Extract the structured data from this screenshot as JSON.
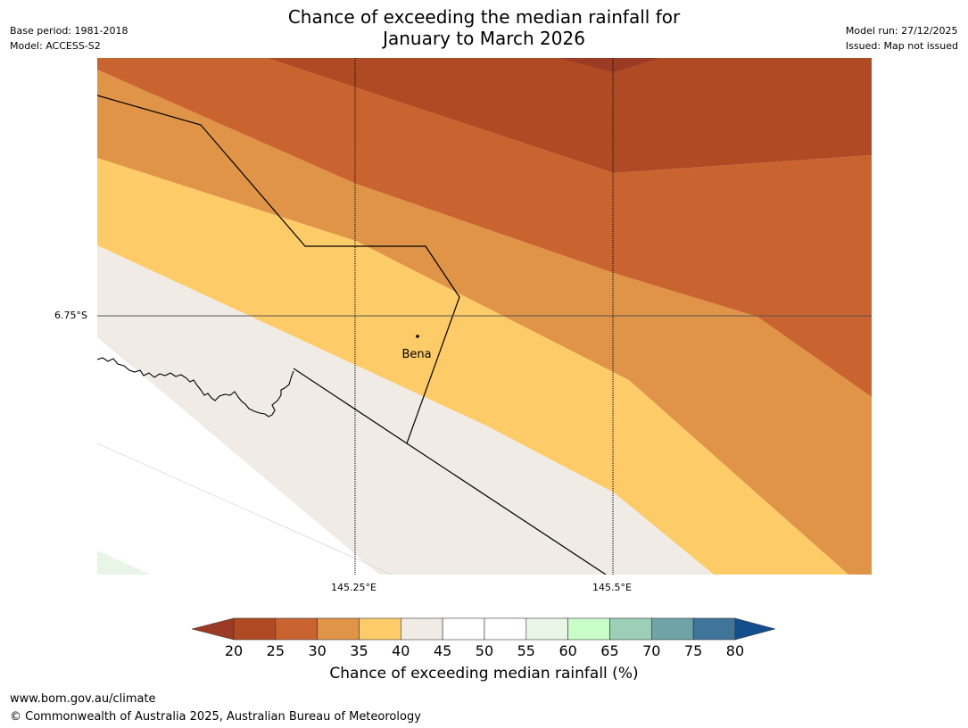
{
  "title": {
    "line1": "Chance of exceeding the median rainfall for",
    "line2": "January to March 2026"
  },
  "meta": {
    "base_period": "Base period: 1981-2018",
    "model": "Model: ACCESS-S2",
    "model_run": "Model run: 27/12/2025",
    "issued": "Issued: Map not issued"
  },
  "map": {
    "lat_label": "6.75°S",
    "lon_labels": [
      "145.25°E",
      "145.5°E"
    ],
    "place": "Bena"
  },
  "legend": {
    "ticks": [
      "20",
      "25",
      "30",
      "35",
      "40",
      "45",
      "50",
      "55",
      "60",
      "65",
      "70",
      "75",
      "80"
    ],
    "title": "Chance of exceeding median rainfall (%)",
    "colors": {
      "lt20": "#9c3b24",
      "c20_25": "#b04a25",
      "c25_30": "#c96431",
      "c30_35": "#e09448",
      "c35_40": "#fecb69",
      "c40_45": "#f0ebe5",
      "c45_50": "#ffffff",
      "c50_55": "#ffffff",
      "c55_60": "#e8f5e7",
      "c60_65": "#c9fec9",
      "c65_70": "#9ccfb6",
      "c70_75": "#6fa3a8",
      "c75_80": "#3f7599",
      "gt80": "#154e8c"
    }
  },
  "footer": {
    "url": "www.bom.gov.au/climate",
    "copyright": "© Commonwealth of Australia 2025, Australian Bureau of Meteorology"
  }
}
